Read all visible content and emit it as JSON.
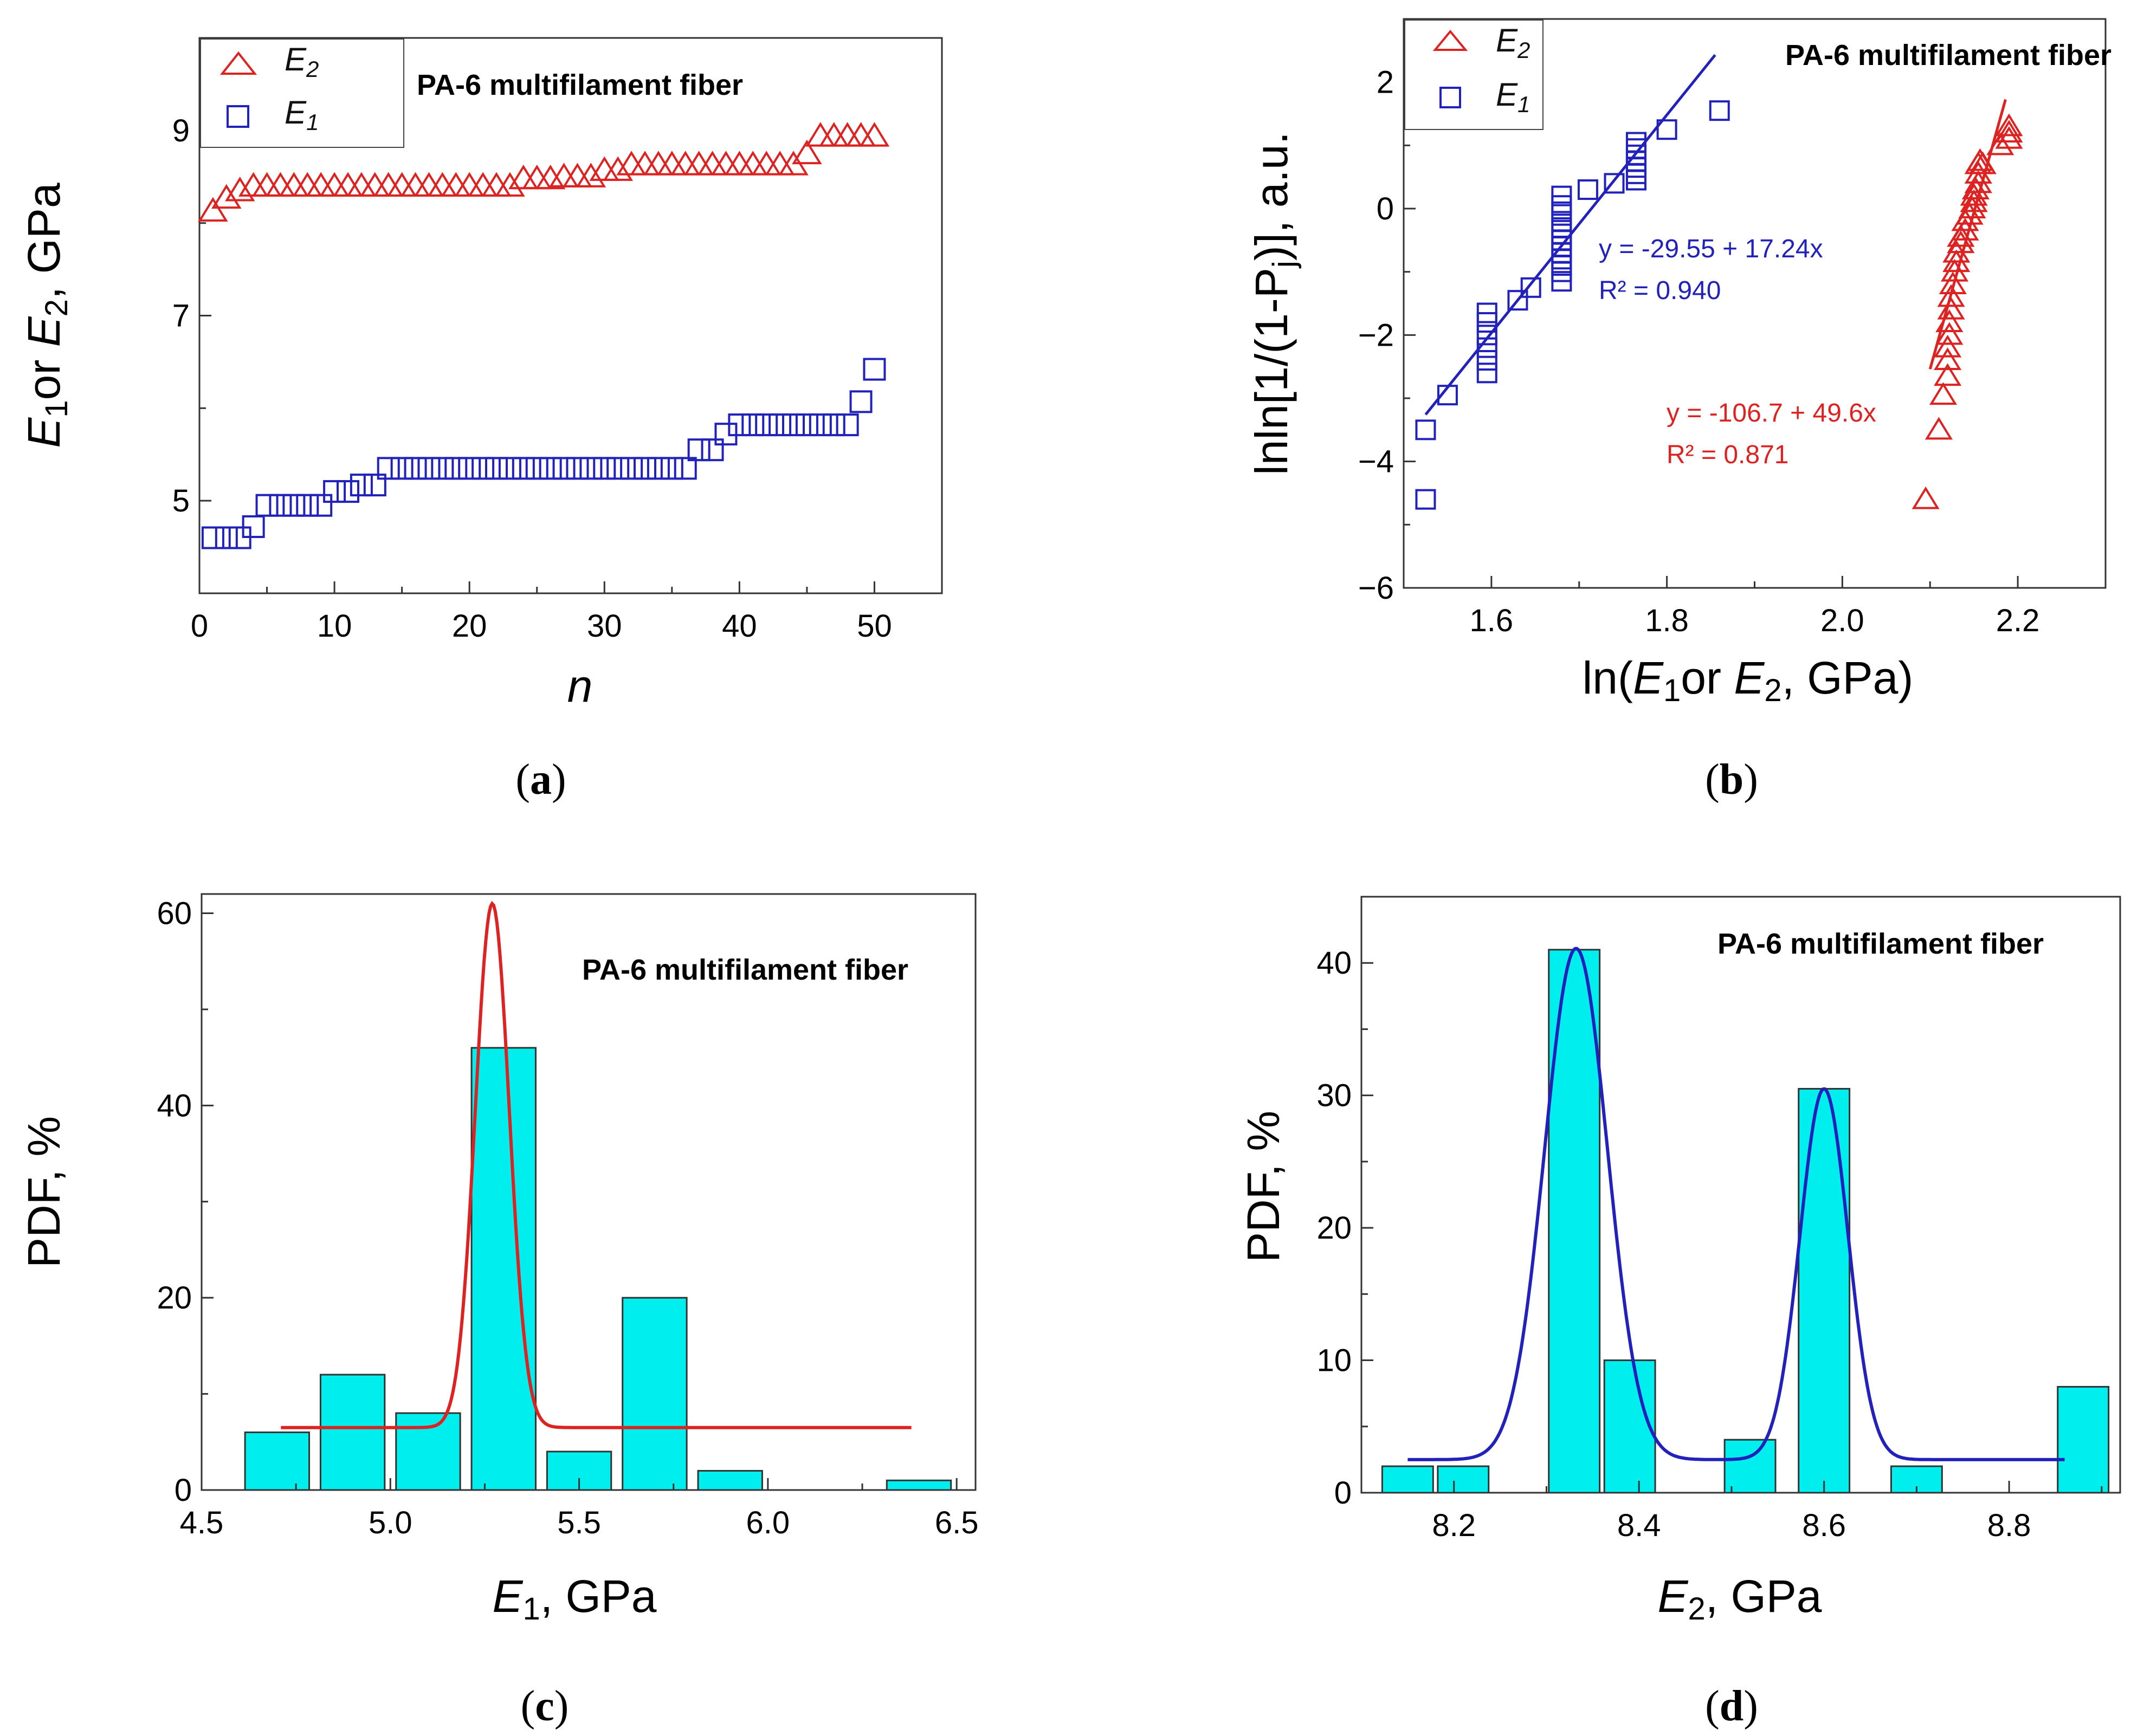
{
  "colors": {
    "red": "#dd2222",
    "blue": "#2222bb",
    "bar_fill": "#00eeee",
    "bar_stroke": "#333333"
  },
  "chart_data": [
    {
      "id": "a",
      "type": "scatter",
      "caption": "(a)",
      "title": "PA-6 multifilament fiber",
      "xlabel": "n",
      "ylabel": "E₁or E₂, GPa",
      "xlim": [
        0,
        55
      ],
      "ylim": [
        4,
        10
      ],
      "xticks": [
        0,
        10,
        20,
        30,
        40,
        50
      ],
      "yticks": [
        5,
        7,
        9
      ],
      "series": [
        {
          "name": "E₂",
          "marker": "triangle",
          "color": "#dd2222",
          "x": [
            1,
            2,
            3,
            4,
            5,
            6,
            7,
            8,
            9,
            10,
            11,
            12,
            13,
            14,
            15,
            16,
            17,
            18,
            19,
            20,
            21,
            22,
            23,
            24,
            25,
            26,
            27,
            28,
            29,
            30,
            31,
            32,
            33,
            34,
            35,
            36,
            37,
            38,
            39,
            40,
            41,
            42,
            43,
            44,
            45,
            46,
            47,
            48,
            49,
            50
          ],
          "values": [
            8.13,
            8.27,
            8.35,
            8.4,
            8.4,
            8.4,
            8.4,
            8.4,
            8.4,
            8.4,
            8.4,
            8.4,
            8.4,
            8.4,
            8.4,
            8.4,
            8.4,
            8.4,
            8.4,
            8.4,
            8.4,
            8.4,
            8.4,
            8.48,
            8.48,
            8.48,
            8.5,
            8.5,
            8.5,
            8.57,
            8.57,
            8.63,
            8.63,
            8.63,
            8.63,
            8.63,
            8.63,
            8.63,
            8.63,
            8.63,
            8.63,
            8.63,
            8.63,
            8.63,
            8.75,
            8.94,
            8.94,
            8.94,
            8.94,
            8.94
          ]
        },
        {
          "name": "E₁",
          "marker": "square",
          "color": "#2222bb",
          "x": [
            1,
            2,
            3,
            4,
            5,
            6,
            7,
            8,
            9,
            10,
            11,
            12,
            13,
            14,
            15,
            16,
            17,
            18,
            19,
            20,
            21,
            22,
            23,
            24,
            25,
            26,
            27,
            28,
            29,
            30,
            31,
            32,
            33,
            34,
            35,
            36,
            37,
            38,
            39,
            40,
            41,
            42,
            43,
            44,
            45,
            46,
            47,
            48,
            49,
            50
          ],
          "values": [
            4.6,
            4.6,
            4.6,
            4.72,
            4.95,
            4.95,
            4.95,
            4.95,
            4.95,
            5.1,
            5.1,
            5.17,
            5.17,
            5.35,
            5.35,
            5.35,
            5.35,
            5.35,
            5.35,
            5.35,
            5.35,
            5.35,
            5.35,
            5.35,
            5.35,
            5.35,
            5.35,
            5.35,
            5.35,
            5.35,
            5.35,
            5.35,
            5.35,
            5.35,
            5.35,
            5.35,
            5.55,
            5.55,
            5.72,
            5.82,
            5.82,
            5.82,
            5.82,
            5.82,
            5.82,
            5.82,
            5.82,
            5.82,
            6.07,
            6.42
          ]
        }
      ]
    },
    {
      "id": "b",
      "type": "scatter",
      "caption": "(b)",
      "title": "PA-6 multifilament fiber",
      "xlabel": "ln(E₁or E₂, GPa)",
      "ylabel": "lnln[1/(1-Pⱼ)], a.u.",
      "xlim": [
        1.5,
        2.3
      ],
      "ylim": [
        -6,
        3
      ],
      "xticks": [
        "1.6",
        "1.8",
        "2.0",
        "2.2"
      ],
      "yticks": [
        "2",
        "0",
        "−2",
        "−4",
        "−6"
      ],
      "series": [
        {
          "name": "E₂",
          "marker": "triangle",
          "color": "#dd2222",
          "x": [
            2.095,
            2.11,
            2.115,
            2.12,
            2.12,
            2.12,
            2.122,
            2.122,
            2.124,
            2.124,
            2.126,
            2.128,
            2.13,
            2.13,
            2.135,
            2.135,
            2.14,
            2.14,
            2.145,
            2.148,
            2.15,
            2.15,
            2.152,
            2.155,
            2.155,
            2.155,
            2.157,
            2.16,
            2.18,
            2.19,
            2.19,
            2.19
          ],
          "values": [
            -4.6,
            -3.5,
            -2.95,
            -2.65,
            -2.4,
            -2.2,
            -2.0,
            -1.8,
            -1.6,
            -1.4,
            -1.2,
            -1.0,
            -0.85,
            -0.7,
            -0.55,
            -0.45,
            -0.35,
            -0.2,
            -0.1,
            0.0,
            0.1,
            0.2,
            0.3,
            0.4,
            0.55,
            0.7,
            0.75,
            0.7,
            1.0,
            1.1,
            1.2,
            1.3
          ]
        },
        {
          "name": "E₁",
          "marker": "square",
          "color": "#2222bb",
          "x": [
            1.525,
            1.525,
            1.55,
            1.595,
            1.595,
            1.595,
            1.595,
            1.595,
            1.595,
            1.63,
            1.645,
            1.68,
            1.68,
            1.68,
            1.68,
            1.68,
            1.68,
            1.68,
            1.68,
            1.68,
            1.68,
            1.68,
            1.68,
            1.68,
            1.71,
            1.74,
            1.765,
            1.765,
            1.765,
            1.765,
            1.765,
            1.765,
            1.765,
            1.8,
            1.86
          ],
          "values": [
            -4.6,
            -3.5,
            -2.95,
            -2.6,
            -2.4,
            -2.2,
            -2.0,
            -1.8,
            -1.65,
            -1.45,
            -1.25,
            -1.15,
            -1.0,
            -0.9,
            -0.8,
            -0.7,
            -0.6,
            -0.5,
            -0.4,
            -0.3,
            -0.2,
            -0.05,
            0.05,
            0.2,
            0.3,
            0.4,
            0.45,
            0.55,
            0.65,
            0.75,
            0.85,
            0.95,
            1.05,
            1.25,
            1.55
          ]
        }
      ],
      "fits": [
        {
          "series": "E₁",
          "color": "#2222bb",
          "intercept": -29.55,
          "slope": 17.24,
          "xrange": [
            1.525,
            1.855
          ],
          "label_eq": "y = -29.55 + 17.24x",
          "label_r2": "R² = 0.940"
        },
        {
          "series": "E₂",
          "color": "#dd2222",
          "intercept": -106.7,
          "slope": 49.6,
          "xrange": [
            2.1,
            2.186
          ],
          "label_eq": "y = -106.7 + 49.6x",
          "label_r2": "R² = 0.871"
        }
      ]
    },
    {
      "id": "c",
      "type": "bar",
      "caption": "(c)",
      "title": "PA-6 multifilament fiber",
      "xlabel": "E₁, GPa",
      "ylabel": "PDF, %",
      "xlim": [
        4.5,
        6.55
      ],
      "ylim": [
        0,
        62
      ],
      "xticks": [
        "4.5",
        "5.0",
        "5.5",
        "6.0",
        "6.5"
      ],
      "yticks": [
        "0",
        "20",
        "40",
        "60"
      ],
      "bin_width": 0.17,
      "categories": [
        4.7,
        4.9,
        5.1,
        5.3,
        5.5,
        5.7,
        5.9,
        6.1,
        6.4
      ],
      "values": [
        6,
        12,
        8,
        46,
        4,
        20,
        2,
        0,
        1
      ],
      "curve": {
        "color": "#dd2222",
        "baseline": 6.5,
        "peak_x": 5.27,
        "peak_y": 61,
        "sigma": 0.045,
        "xrange": [
          4.71,
          6.38
        ]
      }
    },
    {
      "id": "d",
      "type": "bar",
      "caption": "(d)",
      "title": "PA-6 multifilament fiber",
      "xlabel": "E₂, GPa",
      "ylabel": "PDF, %",
      "xlim": [
        8.1,
        8.92
      ],
      "ylim": [
        0,
        45
      ],
      "xticks": [
        "8.2",
        "8.4",
        "8.6",
        "8.8"
      ],
      "yticks": [
        "0",
        "10",
        "20",
        "30",
        "40"
      ],
      "bin_width": 0.055,
      "categories": [
        8.15,
        8.21,
        8.33,
        8.39,
        8.52,
        8.6,
        8.7,
        8.88
      ],
      "values": [
        2,
        2,
        41,
        10,
        4,
        30.5,
        2,
        8
      ],
      "curve": {
        "color": "#2222bb",
        "baseline": 2.5,
        "peaks": [
          {
            "x": 8.332,
            "h": 38.6,
            "s": 0.034
          },
          {
            "x": 8.6,
            "h": 28,
            "s": 0.026
          }
        ],
        "xrange": [
          8.15,
          8.86
        ]
      }
    }
  ]
}
